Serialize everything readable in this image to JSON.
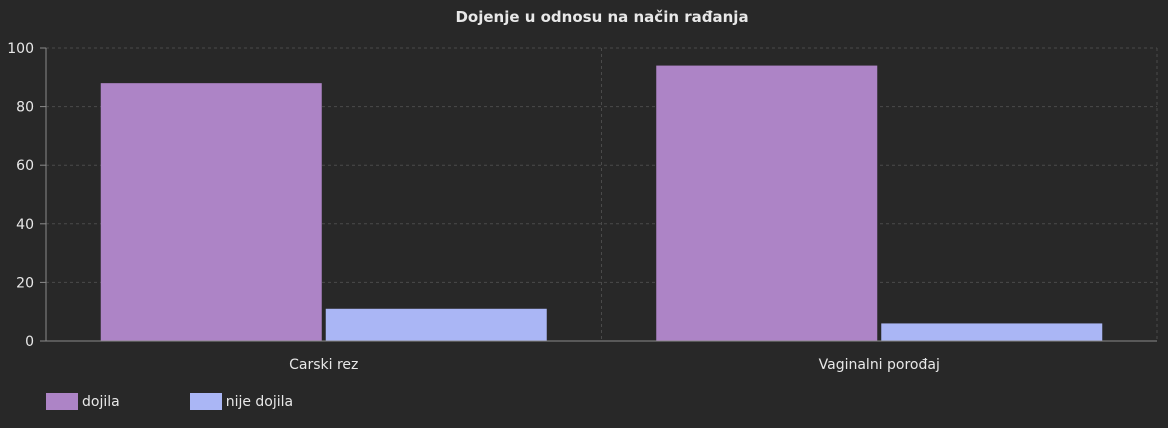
{
  "chart_data": {
    "type": "bar",
    "title": "Dojenje u odnosu na način rađanja",
    "categories": [
      "Carski rez",
      "Vaginalni porođaj"
    ],
    "series": [
      {
        "name": "dojila",
        "values": [
          88,
          94
        ],
        "color": "#ad84c6"
      },
      {
        "name": "nije dojila",
        "values": [
          11,
          6
        ],
        "color": "#aab6f5"
      }
    ],
    "ylim": [
      0,
      100
    ],
    "yticks": [
      0,
      20,
      40,
      60,
      80,
      100
    ],
    "grid": true,
    "legend_position": "bottom-left"
  },
  "colors": {
    "background": "#282828",
    "grid": "#4a4a4a",
    "axis": "#8a8a8a",
    "text": "#e8e8e8"
  }
}
